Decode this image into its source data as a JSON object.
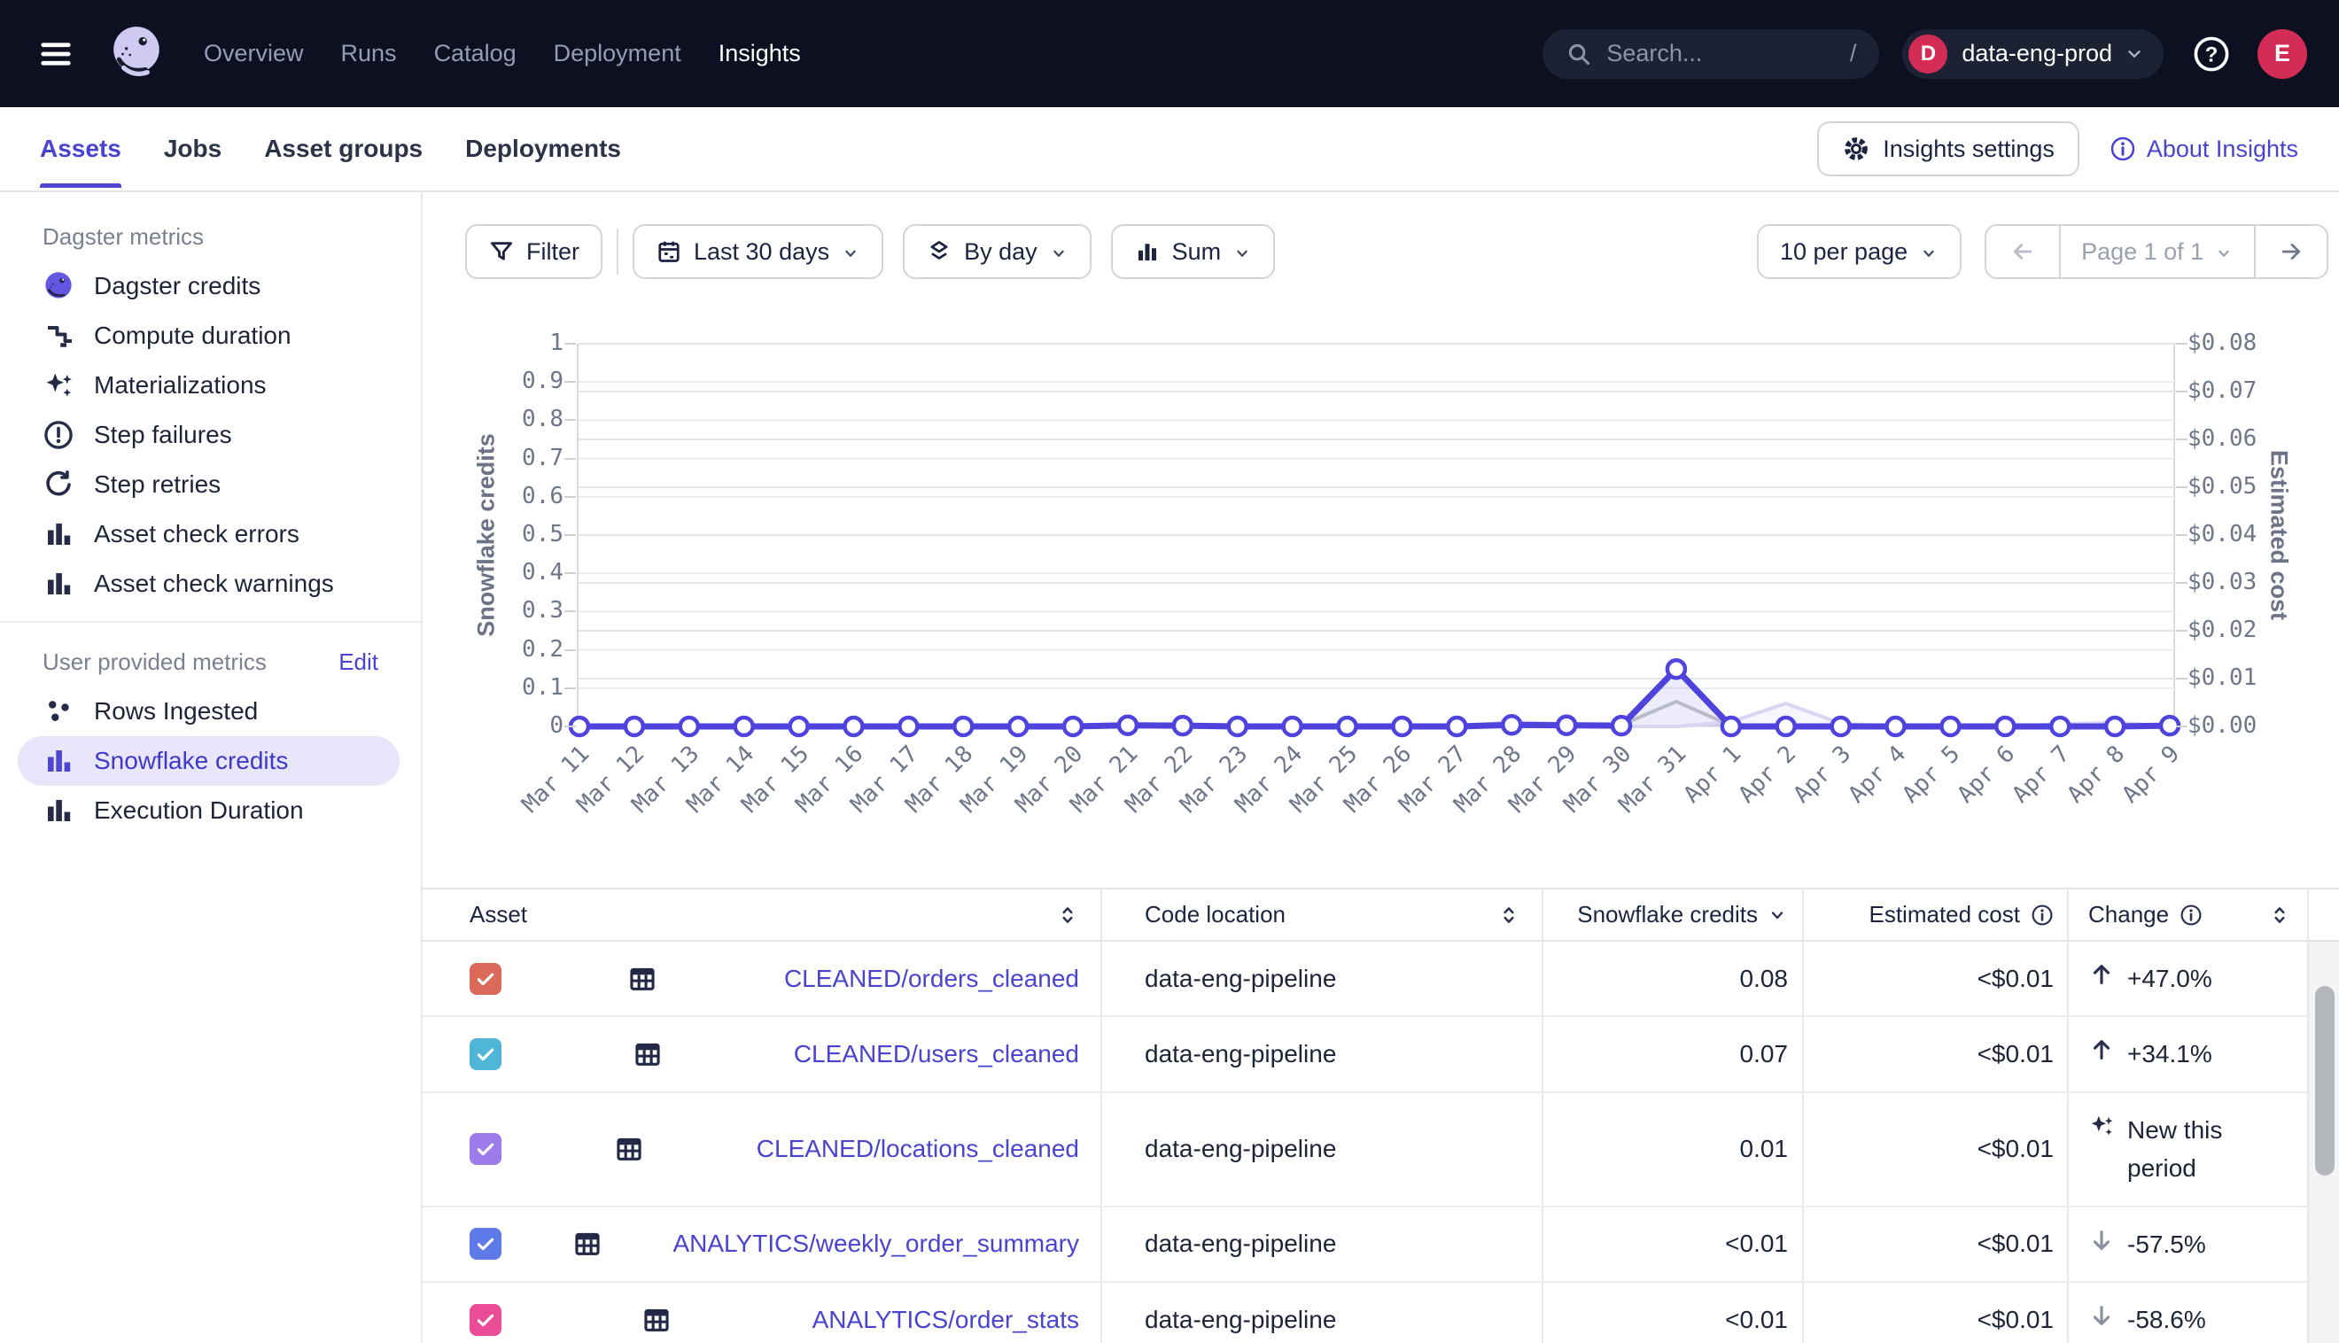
{
  "colors": {
    "accent_purple": "#4f43dd",
    "nav_background": "#0d1021",
    "crimson_avatar": "#d32d57",
    "selected_item_bg": "#e9e6fb",
    "series_gray": "#b9bcc7",
    "series_lavender": "#d9d6f3"
  },
  "topnav": {
    "items": [
      {
        "label": "Overview",
        "active": false
      },
      {
        "label": "Runs",
        "active": false
      },
      {
        "label": "Catalog",
        "active": false
      },
      {
        "label": "Deployment",
        "active": false
      },
      {
        "label": "Insights",
        "active": true
      }
    ],
    "search": {
      "placeholder": "Search...",
      "shortcut": "/"
    },
    "workspace": {
      "avatar_letter": "D",
      "name": "data-eng-prod"
    },
    "user": {
      "avatar_letter": "E"
    }
  },
  "tabbar": {
    "tabs": [
      {
        "label": "Assets",
        "active": true
      },
      {
        "label": "Jobs",
        "active": false
      },
      {
        "label": "Asset groups",
        "active": false
      },
      {
        "label": "Deployments",
        "active": false
      }
    ],
    "settings_button": "Insights settings",
    "about_link": "About Insights"
  },
  "sidebar": {
    "dagster_section": {
      "title": "Dagster metrics",
      "items": [
        {
          "icon": "octopus",
          "label": "Dagster credits"
        },
        {
          "icon": "stairs",
          "label": "Compute duration"
        },
        {
          "icon": "sparkle",
          "label": "Materializations"
        },
        {
          "icon": "alert-circle",
          "label": "Step failures"
        },
        {
          "icon": "refresh",
          "label": "Step retries"
        },
        {
          "icon": "bar-chart",
          "label": "Asset check errors"
        },
        {
          "icon": "bar-chart",
          "label": "Asset check warnings"
        }
      ]
    },
    "user_section": {
      "title": "User provided metrics",
      "edit_label": "Edit",
      "items": [
        {
          "icon": "dots",
          "label": "Rows Ingested",
          "selected": false
        },
        {
          "icon": "bar-chart",
          "label": "Snowflake credits",
          "selected": true
        },
        {
          "icon": "bar-chart",
          "label": "Execution Duration",
          "selected": false
        }
      ]
    }
  },
  "toolbar": {
    "filter": "Filter",
    "date_range": "Last 30 days",
    "granularity": "By day",
    "aggregation": "Sum",
    "per_page": "10 per page",
    "page_label": "Page 1 of 1"
  },
  "chart": {
    "left_axis": {
      "title": "Snowflake credits",
      "ticks": [
        "1",
        "0.9",
        "0.8",
        "0.7",
        "0.6",
        "0.5",
        "0.4",
        "0.3",
        "0.2",
        "0.1",
        "0"
      ]
    },
    "right_axis": {
      "title": "Estimated cost",
      "ticks": [
        "$0.08",
        "$0.07",
        "$0.06",
        "$0.05",
        "$0.04",
        "$0.03",
        "$0.02",
        "$0.01",
        "$0.00"
      ]
    },
    "chart_data": {
      "type": "line",
      "x": [
        "Mar 11",
        "Mar 12",
        "Mar 13",
        "Mar 14",
        "Mar 15",
        "Mar 16",
        "Mar 17",
        "Mar 18",
        "Mar 19",
        "Mar 20",
        "Mar 21",
        "Mar 22",
        "Mar 23",
        "Mar 24",
        "Mar 25",
        "Mar 26",
        "Mar 27",
        "Mar 28",
        "Mar 29",
        "Mar 30",
        "Mar 31",
        "Apr 1",
        "Apr 2",
        "Apr 3",
        "Apr 4",
        "Apr 5",
        "Apr 6",
        "Apr 7",
        "Apr 8",
        "Apr 9"
      ],
      "ylabel": "Snowflake credits",
      "ylabel_right": "Estimated cost",
      "ylim": [
        0,
        1
      ],
      "right_ylim_labels": [
        "$0.00",
        "$0.08"
      ],
      "grid": true,
      "series": [
        {
          "name": "Sum of selected assets",
          "color": "#4f43dd",
          "width": 7,
          "markers": true,
          "fill": "rgba(79,67,221,0.10)",
          "values": [
            0,
            0,
            0,
            0,
            0,
            0,
            0,
            0,
            0,
            0,
            0.003,
            0.002,
            0,
            0,
            0,
            0,
            0,
            0.004,
            0.003,
            0.002,
            0.15,
            0,
            0,
            0,
            0,
            0,
            0,
            0,
            0,
            0.002
          ]
        },
        {
          "name": "Secondary series (gray)",
          "color": "#b9bcc7",
          "width": 4,
          "markers": false,
          "fill": "none",
          "values": [
            0,
            0,
            0,
            0,
            0,
            0,
            0,
            0,
            0,
            0,
            0,
            0,
            0,
            0,
            0,
            0,
            0,
            0,
            0,
            0.004,
            0.065,
            0.002,
            0,
            0,
            0,
            0,
            0,
            0,
            0,
            0
          ]
        },
        {
          "name": "Secondary series (lavender)",
          "color": "#d9d6f3",
          "width": 4,
          "markers": false,
          "fill": "rgba(130,122,230,0.07)",
          "values": [
            0,
            0,
            0,
            0,
            0,
            0,
            0,
            0,
            0,
            0,
            0,
            0,
            0,
            0,
            0,
            0,
            0,
            0.012,
            0.006,
            0,
            0,
            0.012,
            0.06,
            0.008,
            0,
            0,
            0,
            0.006,
            0.01,
            0
          ]
        }
      ]
    }
  },
  "table": {
    "columns": [
      {
        "key": "asset",
        "label": "Asset",
        "sort": "sortable"
      },
      {
        "key": "code_location",
        "label": "Code location",
        "sort": "sortable"
      },
      {
        "key": "credits",
        "label": "Snowflake credits",
        "sort": "desc"
      },
      {
        "key": "cost",
        "label": "Estimated cost",
        "info": true
      },
      {
        "key": "change",
        "label": "Change",
        "info": true,
        "sort": "sortable"
      }
    ],
    "rows": [
      {
        "checkbox_color": "#dc6a5a",
        "asset": "CLEANED/orders_cleaned",
        "code_location": "data-eng-pipeline",
        "credits": "0.08",
        "cost": "<$0.01",
        "change": {
          "kind": "up",
          "icon": "arrow-up",
          "label": "+47.0%"
        }
      },
      {
        "checkbox_color": "#4fb6d8",
        "asset": "CLEANED/users_cleaned",
        "code_location": "data-eng-pipeline",
        "credits": "0.07",
        "cost": "<$0.01",
        "change": {
          "kind": "up",
          "icon": "arrow-up",
          "label": "+34.1%"
        }
      },
      {
        "checkbox_color": "#9d7bea",
        "asset": "CLEANED/locations_cleaned",
        "code_location": "data-eng-pipeline",
        "credits": "0.01",
        "cost": "<$0.01",
        "change": {
          "kind": "new",
          "icon": "sparkle",
          "label": "New this period"
        }
      },
      {
        "checkbox_color": "#5e7ae8",
        "asset": "ANALYTICS/weekly_order_summary",
        "code_location": "data-eng-pipeline",
        "credits": "<0.01",
        "cost": "<$0.01",
        "change": {
          "kind": "down",
          "icon": "arrow-down",
          "label": "-57.5%"
        }
      },
      {
        "checkbox_color": "#eb4c96",
        "asset": "ANALYTICS/order_stats",
        "code_location": "data-eng-pipeline",
        "credits": "<0.01",
        "cost": "<$0.01",
        "change": {
          "kind": "down",
          "icon": "arrow-down",
          "label": "-58.6%"
        }
      }
    ]
  }
}
